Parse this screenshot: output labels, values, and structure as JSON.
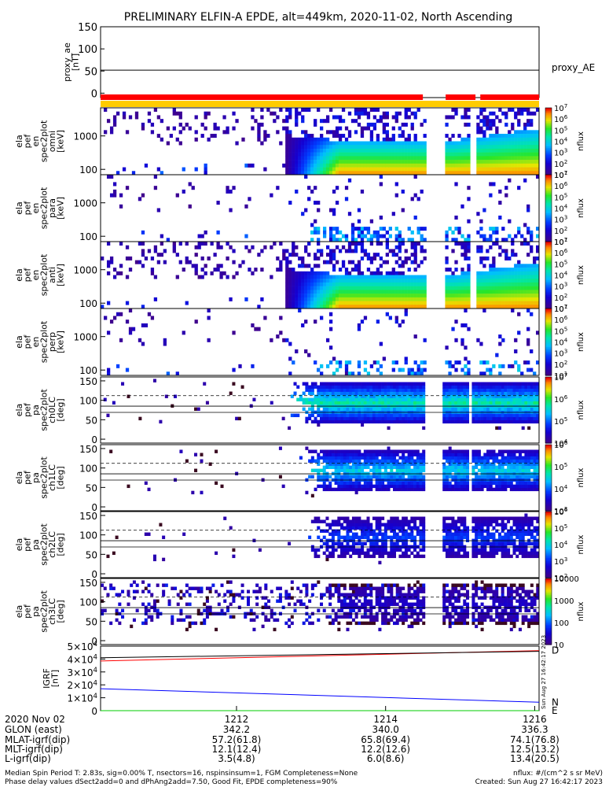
{
  "chart_data": {
    "type": "heatmap",
    "title": "PRELIMINARY ELFIN-A EPDE, alt=449km, 2020-11-02, North Ascending",
    "top_panel": {
      "ylabel_lines": [
        "proxy_ae",
        "[nT]"
      ],
      "yticks": [
        "150",
        "100",
        "50",
        "0"
      ],
      "ylim": [
        -10,
        150
      ],
      "legend": "proxy_AE",
      "value": 52,
      "color": "#000000"
    },
    "status_bar": {
      "segments": [
        {
          "from": 0.0,
          "to": 0.735,
          "color": "#ff0000"
        },
        {
          "from": 0.787,
          "to": 0.855,
          "color": "#ff0000"
        },
        {
          "from": 0.866,
          "to": 1.0,
          "color": "#ff0000"
        }
      ],
      "underline_color": "#ffcc00"
    },
    "spectrum_panels": [
      {
        "ylabel_lines": [
          "ela",
          "pef",
          "en",
          "spec2plot",
          "omni",
          "[keV]"
        ],
        "yticks": [
          "1000",
          "100"
        ],
        "cbar_ticks": [
          "10^7",
          "10^6",
          "10^5",
          "10^4",
          "10^3",
          "10^2",
          "10^1"
        ],
        "cbar_label": "nflux",
        "omni": true
      },
      {
        "ylabel_lines": [
          "ela",
          "pef",
          "en",
          "spec2plot",
          "para",
          "[keV]"
        ],
        "yticks": [
          "1000",
          "100"
        ],
        "cbar_ticks": [
          "10^7",
          "10^6",
          "10^5",
          "10^4",
          "10^3",
          "10^2",
          "10^1"
        ],
        "cbar_label": "nflux",
        "omni": false
      },
      {
        "ylabel_lines": [
          "ela",
          "pef",
          "en",
          "spec2plot",
          "anti",
          "[keV]"
        ],
        "yticks": [
          "1000",
          "100"
        ],
        "cbar_ticks": [
          "10^7",
          "10^6",
          "10^5",
          "10^4",
          "10^3",
          "10^2",
          "10^1"
        ],
        "cbar_label": "nflux",
        "omni": true
      },
      {
        "ylabel_lines": [
          "ela",
          "pef",
          "en",
          "spec2plot",
          "perp",
          "[keV]"
        ],
        "yticks": [
          "1000",
          "100"
        ],
        "cbar_ticks": [
          "10^7",
          "10^6",
          "10^5",
          "10^4",
          "10^3",
          "10^2",
          "10^1"
        ],
        "cbar_label": "nflux",
        "omni": false
      }
    ],
    "pitch_panels": [
      {
        "ylabel_lines": [
          "ela",
          "pef",
          "pa",
          "spec2plot",
          "ch0LC",
          "[deg]"
        ],
        "yticks": [
          "150",
          "100",
          "50",
          "0"
        ],
        "cbar_ticks": [
          "10^7",
          "10^6",
          "10^5",
          "10^4"
        ],
        "cbar_label": "nflux",
        "strength": 1.0
      },
      {
        "ylabel_lines": [
          "ela",
          "pef",
          "pa",
          "spec2plot",
          "ch1LC",
          "[deg]"
        ],
        "yticks": [
          "150",
          "100",
          "50",
          "0"
        ],
        "cbar_ticks": [
          "10^6",
          "10^5",
          "10^4",
          "10^3"
        ],
        "cbar_label": "nflux",
        "strength": 0.85
      },
      {
        "ylabel_lines": [
          "ela",
          "pef",
          "pa",
          "spec2plot",
          "ch2LC",
          "[deg]"
        ],
        "yticks": [
          "150",
          "100",
          "50",
          "0"
        ],
        "cbar_ticks": [
          "10^6",
          "10^5",
          "10^4",
          "10^3",
          "10^2"
        ],
        "cbar_label": "nflux",
        "strength": 0.5
      },
      {
        "ylabel_lines": [
          "ela",
          "pef",
          "pa",
          "spec2plot",
          "ch3LC",
          "[deg]"
        ],
        "yticks": [
          "150",
          "100",
          "50",
          "0"
        ],
        "cbar_ticks": [
          "10000",
          "1000",
          "100",
          "10"
        ],
        "cbar_label": "nflux",
        "strength": 0.25
      }
    ],
    "igrf_panel": {
      "ylabel_lines": [
        "IGRF",
        "[nT]"
      ],
      "yticks": [
        "5×10^4",
        "4×10^4",
        "3×10^4",
        "2×10^4",
        "1×10^4",
        "0"
      ],
      "ylim": [
        0,
        50000
      ],
      "series": [
        {
          "name": "D",
          "color": "#ff0000",
          "x": [
            0,
            1
          ],
          "y": [
            38500,
            46500
          ]
        },
        {
          "name": "",
          "color": "#000000",
          "x": [
            0,
            1
          ],
          "y": [
            41000,
            46000
          ]
        },
        {
          "name": "N",
          "color": "#0000ff",
          "x": [
            0,
            1
          ],
          "y": [
            17000,
            6500
          ]
        },
        {
          "name": "E",
          "color": "#00cc00",
          "x": [
            0,
            1
          ],
          "y": [
            0,
            0
          ]
        }
      ],
      "side_stamp": "Sun Aug 27 16:42:17 2023"
    },
    "x_axis": {
      "row_labels": [
        "2020 Nov 02",
        "GLON (east)",
        "MLAT-igrf(dip)",
        "MLT-igrf(dip)",
        "L-igrf(dip)"
      ],
      "columns": [
        {
          "pos": 0.31,
          "values": [
            "1212",
            "342.2",
            "57.2(61.8)",
            "12.1(12.4)",
            "3.5(4.8)"
          ]
        },
        {
          "pos": 0.65,
          "values": [
            "1214",
            "340.0",
            "65.8(69.4)",
            "12.2(12.6)",
            "6.0(8.6)"
          ]
        },
        {
          "pos": 0.99,
          "values": [
            "1216",
            "336.3",
            "74.1(76.8)",
            "12.5(13.2)",
            "13.4(20.5)"
          ]
        }
      ]
    },
    "gaps": [
      {
        "from": 0.738,
        "to": 0.746
      },
      {
        "from": 0.746,
        "to": 0.78
      },
      {
        "from": 0.837,
        "to": 0.843
      },
      {
        "from": 0.847,
        "to": 0.852
      }
    ],
    "dashed_line_deg": 112,
    "solid_lines_deg": [
      85,
      69
    ]
  },
  "footer": {
    "left_line1": "Median Spin Period T: 2.83s, sig=0.00% T, nsectors=16, nspinsinsum=1, FGM Completeness=None",
    "left_line2": "Phase delay values dSect2add=0 and dPhAng2add=7.50, Good Fit, EPDE completeness=90%",
    "right_line1": "nflux: #/(cm^2 s sr MeV)",
    "right_line2": "Created: Sun Aug 27 16:42:17 2023"
  }
}
